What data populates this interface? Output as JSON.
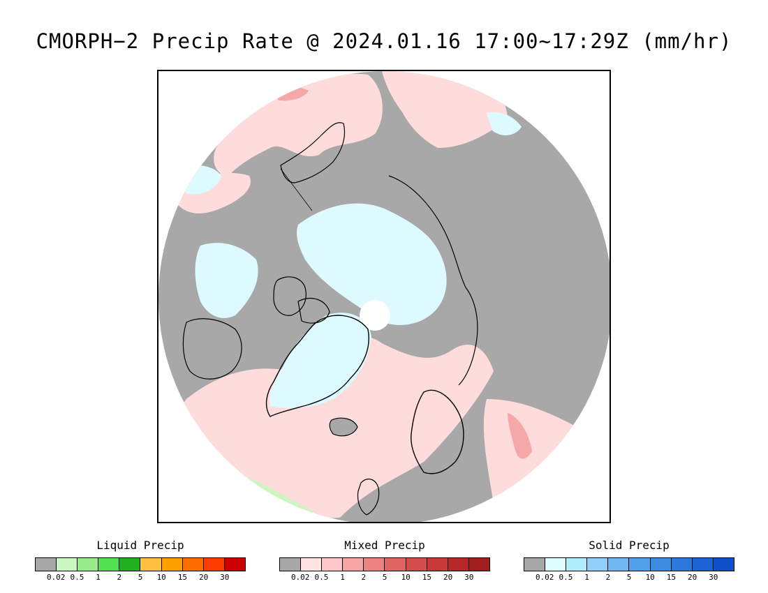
{
  "title": "CMORPH−2 Precip Rate @ 2024.01.16 17:00~17:29Z (mm/hr)",
  "map": {
    "projection": "north-polar-stereographic",
    "colors": {
      "no_data": "#a8a8a8",
      "mixed_light": "#ffdcdc",
      "mixed_medium": "#f4a8a8",
      "solid_light": "#dcfaff",
      "liquid_light": "#c8f8c0",
      "coast": "#000000"
    }
  },
  "legends": [
    {
      "id": "liquid",
      "title": "Liquid Precip",
      "colors": [
        "#a8a8a8",
        "#c8f8c0",
        "#98ec8c",
        "#50e050",
        "#20b020",
        "#ffc040",
        "#ffa000",
        "#ff6e00",
        "#ff3c00",
        "#cc0000"
      ],
      "ticks": [
        "0.02",
        "0.5",
        "1",
        "2",
        "5",
        "10",
        "15",
        "20",
        "30"
      ]
    },
    {
      "id": "mixed",
      "title": "Mixed Precip",
      "colors": [
        "#a8a8a8",
        "#ffe4e4",
        "#ffc8c8",
        "#f4a4a4",
        "#ec8484",
        "#e06464",
        "#d44c4c",
        "#c83838",
        "#b42828",
        "#a01e1e"
      ],
      "ticks": [
        "0.02",
        "0.5",
        "1",
        "2",
        "5",
        "10",
        "15",
        "20",
        "30"
      ]
    },
    {
      "id": "solid",
      "title": "Solid Precip",
      "colors": [
        "#a8a8a8",
        "#dcfcff",
        "#b0ecfc",
        "#90d0f8",
        "#70b8f4",
        "#50a0ec",
        "#3c8ce4",
        "#2c78dc",
        "#1c64d4",
        "#1050c8"
      ],
      "ticks": [
        "0.02",
        "0.5",
        "1",
        "2",
        "5",
        "10",
        "15",
        "20",
        "30"
      ]
    }
  ]
}
